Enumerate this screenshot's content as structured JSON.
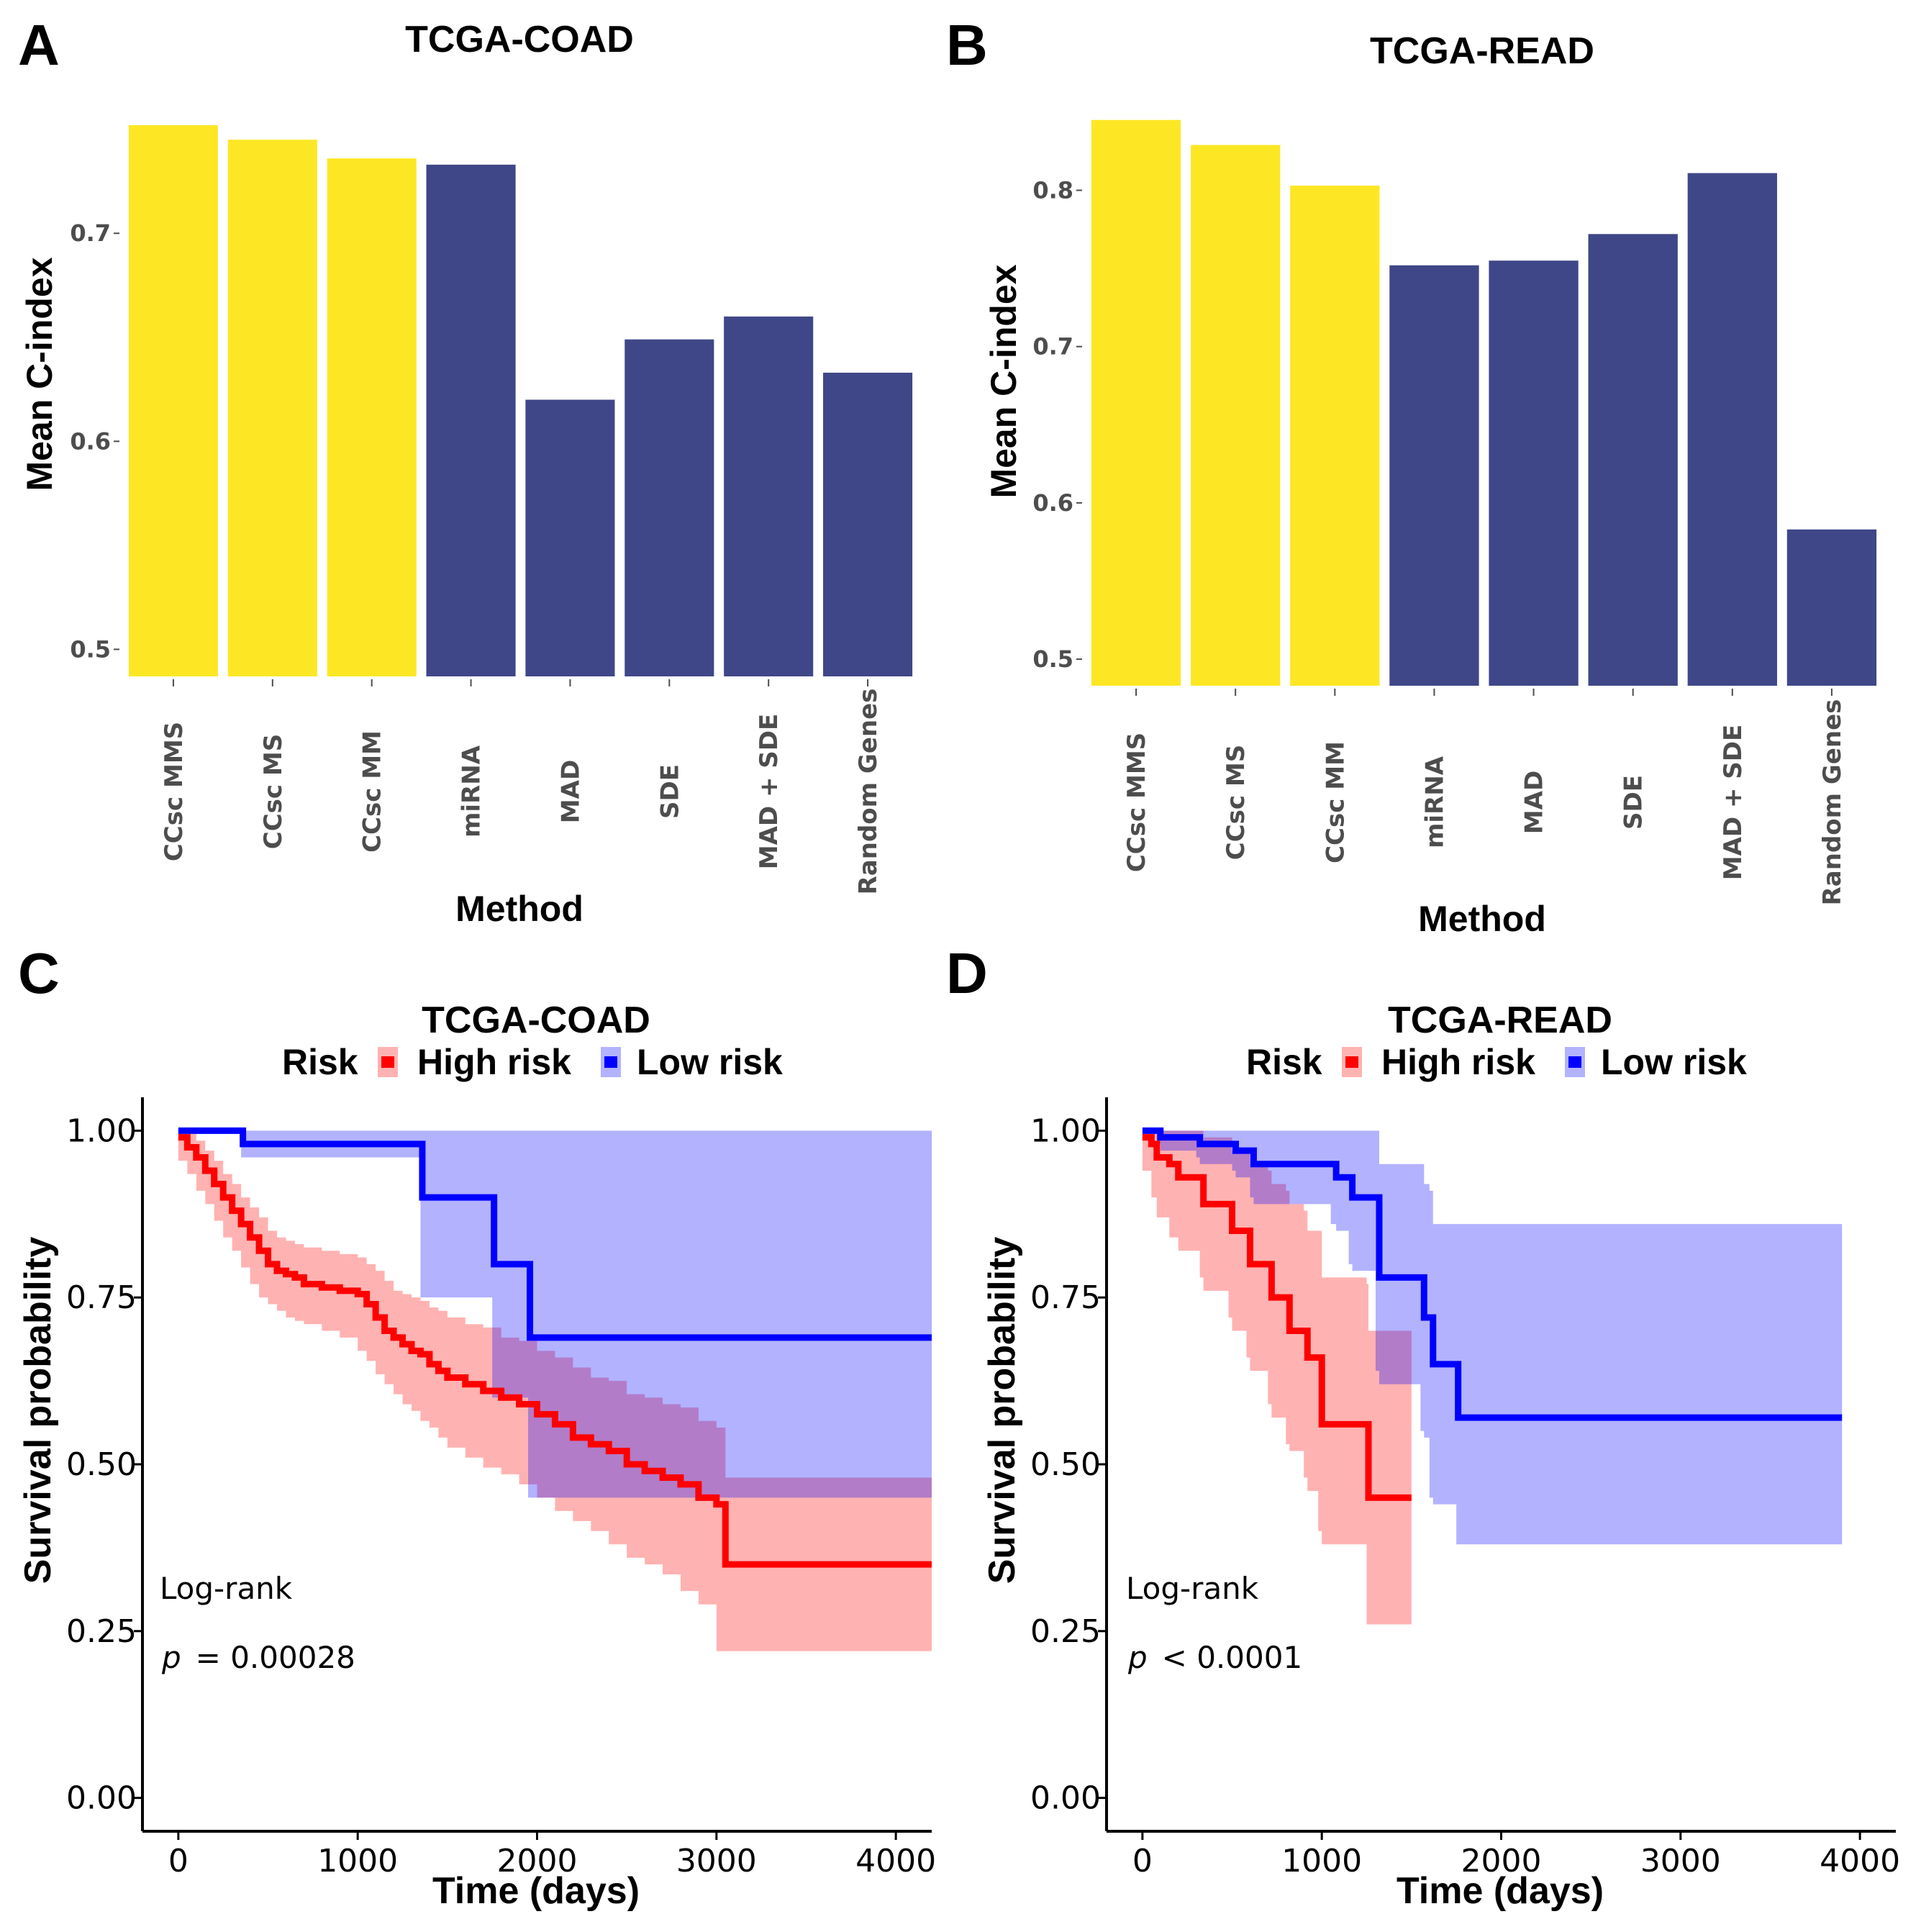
{
  "chart_data": [
    {
      "panel": "A",
      "type": "bar",
      "title": "TCGA-COAD",
      "xlabel": "Method",
      "ylabel": "Mean C-index",
      "categories": [
        "CCsc MMS",
        "CCsc MS",
        "CCsc MM",
        "miRNA",
        "MAD",
        "SDE",
        "MAD + SDE",
        "Random Genes"
      ],
      "values": [
        0.752,
        0.745,
        0.736,
        0.733,
        0.62,
        0.649,
        0.66,
        0.633
      ],
      "highlight": [
        true,
        true,
        true,
        false,
        false,
        false,
        false,
        false
      ],
      "colors": {
        "highlight": "#FDE725",
        "other": "#3F4788"
      },
      "yticks": [
        0.5,
        0.6,
        0.7
      ],
      "ylim": [
        0.487,
        0.762
      ]
    },
    {
      "panel": "B",
      "type": "bar",
      "title": "TCGA-READ",
      "xlabel": "Method",
      "ylabel": "Mean C-index",
      "categories": [
        "CCsc MMS",
        "CCsc MS",
        "CCsc MM",
        "miRNA",
        "MAD",
        "SDE",
        "MAD + SDE",
        "Random Genes"
      ],
      "values": [
        0.845,
        0.829,
        0.803,
        0.752,
        0.755,
        0.772,
        0.811,
        0.583
      ],
      "highlight": [
        true,
        true,
        true,
        false,
        false,
        false,
        false,
        false
      ],
      "colors": {
        "highlight": "#FDE725",
        "other": "#3F4788"
      },
      "yticks": [
        0.5,
        0.6,
        0.7,
        0.8
      ],
      "ylim": [
        0.483,
        0.855
      ]
    },
    {
      "panel": "C",
      "type": "line",
      "title": "TCGA-COAD",
      "xlabel": "Time (days)",
      "ylabel": "Survival probability",
      "legend_title": "Risk",
      "xticks": [
        0,
        1000,
        2000,
        3000,
        4000
      ],
      "yticks": [
        "0.00",
        "0.25",
        "0.50",
        "0.75",
        "1.00"
      ],
      "xlim": [
        -200,
        4200
      ],
      "ylim": [
        -0.05,
        1.05
      ],
      "annotation": {
        "test": "Log-rank",
        "p_symbol": "p",
        "p_value": "= 0.00028"
      },
      "series": [
        {
          "name": "High risk",
          "color": "#FF0000",
          "band_color": "#FF0000",
          "x": [
            0,
            50,
            100,
            150,
            200,
            250,
            300,
            350,
            400,
            450,
            500,
            550,
            600,
            650,
            700,
            800,
            900,
            1000,
            1050,
            1100,
            1150,
            1200,
            1250,
            1300,
            1350,
            1400,
            1450,
            1500,
            1600,
            1700,
            1800,
            1900,
            2000,
            2100,
            2200,
            2300,
            2400,
            2500,
            2600,
            2700,
            2800,
            2900,
            3000,
            3050,
            4200
          ],
          "y": [
            0.99,
            0.975,
            0.96,
            0.94,
            0.92,
            0.9,
            0.88,
            0.86,
            0.84,
            0.82,
            0.8,
            0.79,
            0.785,
            0.78,
            0.77,
            0.765,
            0.76,
            0.755,
            0.74,
            0.72,
            0.7,
            0.69,
            0.68,
            0.67,
            0.665,
            0.65,
            0.64,
            0.63,
            0.62,
            0.61,
            0.6,
            0.59,
            0.575,
            0.56,
            0.54,
            0.53,
            0.52,
            0.5,
            0.49,
            0.48,
            0.47,
            0.45,
            0.44,
            0.35,
            0.35
          ],
          "lower": [
            0.97,
            0.955,
            0.935,
            0.91,
            0.89,
            0.865,
            0.84,
            0.82,
            0.795,
            0.77,
            0.75,
            0.74,
            0.73,
            0.72,
            0.715,
            0.71,
            0.7,
            0.69,
            0.67,
            0.655,
            0.635,
            0.62,
            0.605,
            0.59,
            0.58,
            0.565,
            0.555,
            0.54,
            0.525,
            0.51,
            0.495,
            0.485,
            0.47,
            0.45,
            0.43,
            0.415,
            0.4,
            0.38,
            0.36,
            0.35,
            0.335,
            0.31,
            0.29,
            0.22,
            0.22
          ],
          "upper": [
            1.0,
            0.995,
            0.985,
            0.97,
            0.955,
            0.935,
            0.92,
            0.9,
            0.885,
            0.87,
            0.85,
            0.84,
            0.835,
            0.83,
            0.825,
            0.82,
            0.815,
            0.81,
            0.8,
            0.79,
            0.775,
            0.76,
            0.755,
            0.75,
            0.745,
            0.735,
            0.73,
            0.72,
            0.71,
            0.705,
            0.69,
            0.685,
            0.67,
            0.66,
            0.645,
            0.63,
            0.625,
            0.605,
            0.6,
            0.59,
            0.585,
            0.565,
            0.555,
            0.48,
            0.48
          ]
        },
        {
          "name": "Low risk",
          "color": "#0000FF",
          "band_color": "#0000FF",
          "x": [
            0,
            350,
            360,
            1350,
            1360,
            1750,
            1760,
            1950,
            1960,
            4200
          ],
          "y": [
            1.0,
            1.0,
            0.98,
            0.98,
            0.9,
            0.9,
            0.8,
            0.8,
            0.69,
            0.69
          ],
          "lower": [
            1.0,
            1.0,
            0.96,
            0.96,
            0.75,
            0.75,
            0.6,
            0.6,
            0.45,
            0.45
          ],
          "upper": [
            1.0,
            1.0,
            1.0,
            1.0,
            1.0,
            1.0,
            1.0,
            1.0,
            1.0,
            1.0
          ]
        }
      ]
    },
    {
      "panel": "D",
      "type": "line",
      "title": "TCGA-READ",
      "xlabel": "Time (days)",
      "ylabel": "Survival probability",
      "legend_title": "Risk",
      "xticks": [
        0,
        1000,
        2000,
        3000,
        4000
      ],
      "yticks": [
        "0.00",
        "0.25",
        "0.50",
        "0.75",
        "1.00"
      ],
      "xlim": [
        -200,
        4200
      ],
      "ylim": [
        -0.05,
        1.05
      ],
      "annotation": {
        "test": "Log-rank",
        "p_symbol": "p",
        "p_value": "< 0.0001"
      },
      "series": [
        {
          "name": "High risk",
          "color": "#FF0000",
          "band_color": "#FF0000",
          "x": [
            0,
            50,
            80,
            150,
            200,
            320,
            340,
            480,
            500,
            580,
            600,
            700,
            720,
            800,
            820,
            900,
            920,
            980,
            1000,
            1250,
            1260,
            1500
          ],
          "y": [
            0.99,
            0.98,
            0.96,
            0.95,
            0.93,
            0.93,
            0.89,
            0.89,
            0.85,
            0.85,
            0.8,
            0.8,
            0.75,
            0.75,
            0.7,
            0.7,
            0.66,
            0.66,
            0.56,
            0.56,
            0.45,
            0.45
          ],
          "lower": [
            0.96,
            0.94,
            0.9,
            0.87,
            0.84,
            0.82,
            0.78,
            0.76,
            0.72,
            0.7,
            0.66,
            0.64,
            0.59,
            0.57,
            0.53,
            0.52,
            0.48,
            0.46,
            0.4,
            0.38,
            0.26,
            0.26
          ],
          "upper": [
            1.0,
            1.0,
            1.0,
            1.0,
            1.0,
            1.0,
            0.99,
            0.99,
            0.97,
            0.97,
            0.95,
            0.94,
            0.92,
            0.91,
            0.89,
            0.88,
            0.85,
            0.85,
            0.78,
            0.77,
            0.7,
            0.7
          ]
        },
        {
          "name": "Low risk",
          "color": "#0000FF",
          "band_color": "#0000FF",
          "x": [
            0,
            80,
            100,
            300,
            320,
            500,
            520,
            600,
            620,
            1050,
            1080,
            1150,
            1170,
            1300,
            1320,
            1550,
            1570,
            1600,
            1620,
            1750,
            1760,
            3900
          ],
          "y": [
            1.0,
            1.0,
            0.99,
            0.99,
            0.98,
            0.98,
            0.97,
            0.97,
            0.95,
            0.95,
            0.93,
            0.93,
            0.9,
            0.9,
            0.78,
            0.78,
            0.72,
            0.72,
            0.65,
            0.65,
            0.57,
            0.57
          ],
          "lower": [
            1.0,
            1.0,
            0.98,
            0.97,
            0.96,
            0.95,
            0.94,
            0.93,
            0.9,
            0.89,
            0.86,
            0.85,
            0.8,
            0.79,
            0.64,
            0.62,
            0.55,
            0.54,
            0.45,
            0.44,
            0.38,
            0.38
          ],
          "upper": [
            1.0,
            1.0,
            1.0,
            1.0,
            1.0,
            1.0,
            1.0,
            1.0,
            1.0,
            1.0,
            1.0,
            1.0,
            1.0,
            1.0,
            0.95,
            0.95,
            0.92,
            0.91,
            0.86,
            0.86,
            0.86,
            0.86
          ]
        }
      ]
    }
  ]
}
